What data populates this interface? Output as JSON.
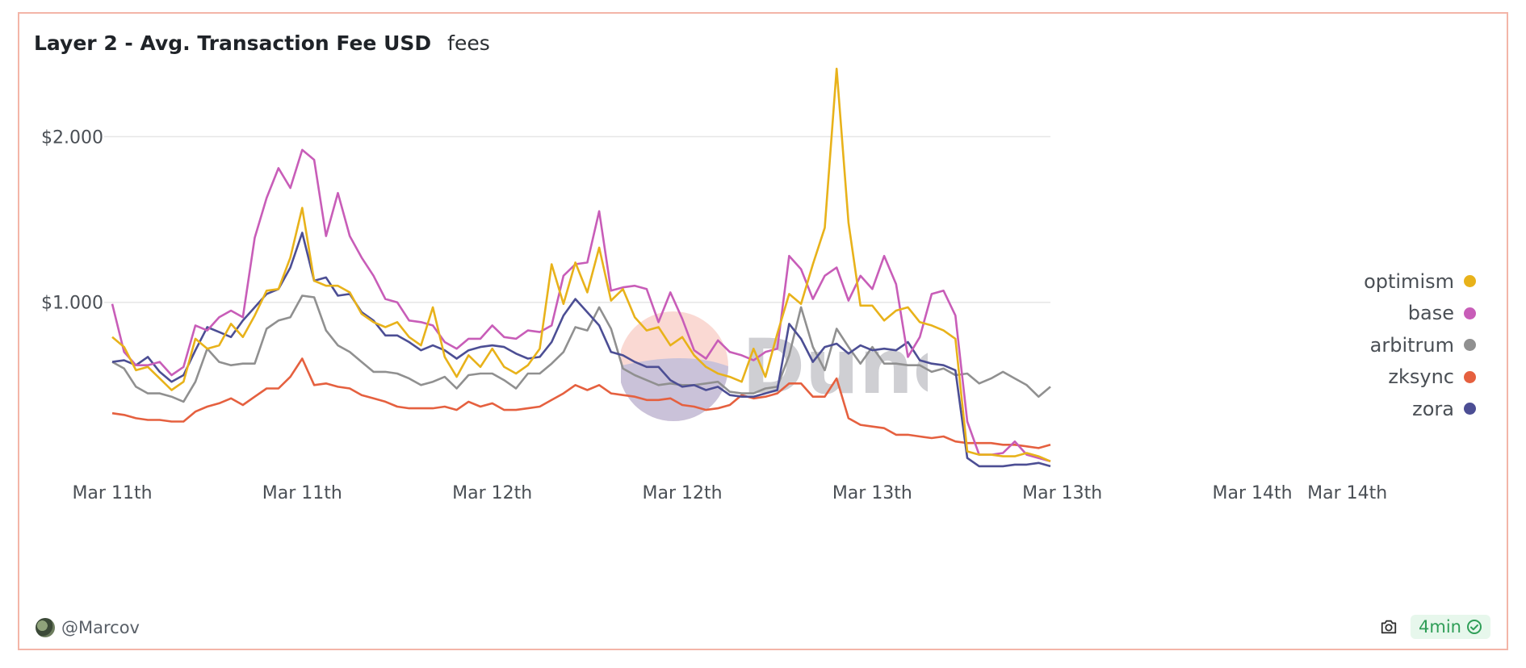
{
  "header": {
    "title": "Layer 2 - Avg. Transaction Fee USD",
    "subtitle": "fees"
  },
  "footer": {
    "author": "@Marcov",
    "refresh": "4min"
  },
  "watermark": {
    "text": "Dune"
  },
  "colors": {
    "optimism": "#e8b21a",
    "base": "#c85db8",
    "arbitrum": "#909090",
    "zksync": "#e5603f",
    "zora": "#4c4e94",
    "border": "#f3b5a8"
  },
  "icons": {
    "camera": "camera-icon",
    "check": "check-circle-icon",
    "avatar": "avatar"
  },
  "chart_data": {
    "type": "line",
    "title": "Layer 2 - Avg. Transaction Fee USD",
    "subtitle": "fees",
    "xlabel": "",
    "ylabel": "",
    "ylim": [
      0,
      2.45
    ],
    "y_ticks": [
      1.0,
      2.0
    ],
    "y_tick_labels": [
      "$1.000",
      "$2.000"
    ],
    "x_tick_labels": [
      "Mar 11th",
      "Mar 11th",
      "Mar 12th",
      "Mar 12th",
      "Mar 13th",
      "Mar 13th",
      "Mar 14th",
      "Mar 14th"
    ],
    "x_tick_index": [
      0,
      16,
      32,
      48,
      64,
      80,
      96,
      104
    ],
    "grid": "horizontal",
    "legend_position": "right",
    "series": [
      {
        "name": "optimism",
        "color": "#e8b21a",
        "values": [
          0.79,
          0.73,
          0.59,
          0.61,
          0.54,
          0.47,
          0.52,
          0.78,
          0.72,
          0.74,
          0.87,
          0.79,
          0.92,
          1.07,
          1.08,
          1.27,
          1.57,
          1.13,
          1.1,
          1.1,
          1.06,
          0.93,
          0.88,
          0.85,
          0.88,
          0.79,
          0.74,
          0.97,
          0.67,
          0.55,
          0.68,
          0.61,
          0.72,
          0.61,
          0.57,
          0.62,
          0.72,
          1.23,
          0.99,
          1.24,
          1.06,
          1.33,
          1.01,
          1.08,
          0.91,
          0.83,
          0.85,
          0.74,
          0.79,
          0.68,
          0.61,
          0.57,
          0.55,
          0.52,
          0.72,
          0.55,
          0.81,
          1.05,
          0.99,
          1.23,
          1.45,
          2.41,
          1.48,
          0.98,
          0.98,
          0.89,
          0.95,
          0.97,
          0.88,
          0.86,
          0.83,
          0.78,
          0.1,
          0.08,
          0.08,
          0.07,
          0.07,
          0.09,
          0.07,
          0.04
        ]
      },
      {
        "name": "base",
        "color": "#c85db8",
        "values": [
          0.99,
          0.7,
          0.62,
          0.62,
          0.64,
          0.56,
          0.61,
          0.86,
          0.83,
          0.91,
          0.95,
          0.91,
          1.39,
          1.63,
          1.81,
          1.69,
          1.92,
          1.86,
          1.4,
          1.66,
          1.4,
          1.27,
          1.16,
          1.02,
          1.0,
          0.89,
          0.88,
          0.86,
          0.76,
          0.72,
          0.78,
          0.78,
          0.86,
          0.79,
          0.78,
          0.83,
          0.82,
          0.86,
          1.16,
          1.23,
          1.24,
          1.55,
          1.07,
          1.09,
          1.1,
          1.08,
          0.88,
          1.06,
          0.9,
          0.71,
          0.66,
          0.77,
          0.7,
          0.68,
          0.65,
          0.7,
          0.72,
          1.28,
          1.2,
          1.02,
          1.16,
          1.21,
          1.01,
          1.16,
          1.08,
          1.28,
          1.11,
          0.67,
          0.79,
          1.05,
          1.07,
          0.92,
          0.28,
          0.08,
          0.08,
          0.09,
          0.16,
          0.08,
          0.06,
          0.04
        ]
      },
      {
        "name": "arbitrum",
        "color": "#909090",
        "values": [
          0.64,
          0.6,
          0.49,
          0.45,
          0.45,
          0.43,
          0.4,
          0.52,
          0.72,
          0.64,
          0.62,
          0.63,
          0.63,
          0.84,
          0.89,
          0.91,
          1.04,
          1.03,
          0.83,
          0.74,
          0.7,
          0.64,
          0.58,
          0.58,
          0.57,
          0.54,
          0.5,
          0.52,
          0.55,
          0.48,
          0.56,
          0.57,
          0.57,
          0.53,
          0.48,
          0.57,
          0.57,
          0.63,
          0.7,
          0.85,
          0.83,
          0.97,
          0.84,
          0.6,
          0.56,
          0.53,
          0.5,
          0.51,
          0.5,
          0.5,
          0.51,
          0.52,
          0.46,
          0.45,
          0.45,
          0.48,
          0.49,
          0.68,
          0.97,
          0.73,
          0.59,
          0.84,
          0.73,
          0.63,
          0.73,
          0.63,
          0.63,
          0.62,
          0.62,
          0.58,
          0.6,
          0.56,
          0.57,
          0.51,
          0.54,
          0.58,
          0.54,
          0.5,
          0.43,
          0.49
        ]
      },
      {
        "name": "zksync",
        "color": "#e5603f",
        "values": [
          0.33,
          0.32,
          0.3,
          0.29,
          0.29,
          0.28,
          0.28,
          0.34,
          0.37,
          0.39,
          0.42,
          0.38,
          0.43,
          0.48,
          0.48,
          0.55,
          0.66,
          0.5,
          0.51,
          0.49,
          0.48,
          0.44,
          0.42,
          0.4,
          0.37,
          0.36,
          0.36,
          0.36,
          0.37,
          0.35,
          0.4,
          0.37,
          0.39,
          0.35,
          0.35,
          0.36,
          0.37,
          0.41,
          0.45,
          0.5,
          0.47,
          0.5,
          0.45,
          0.44,
          0.43,
          0.41,
          0.41,
          0.42,
          0.38,
          0.37,
          0.35,
          0.36,
          0.38,
          0.44,
          0.42,
          0.43,
          0.45,
          0.51,
          0.51,
          0.43,
          0.43,
          0.54,
          0.3,
          0.26,
          0.25,
          0.24,
          0.2,
          0.2,
          0.19,
          0.18,
          0.19,
          0.16,
          0.15,
          0.15,
          0.15,
          0.14,
          0.14,
          0.13,
          0.12,
          0.14
        ]
      },
      {
        "name": "zora",
        "color": "#4c4e94",
        "values": [
          0.64,
          0.65,
          0.62,
          0.67,
          0.58,
          0.52,
          0.56,
          0.71,
          0.85,
          0.82,
          0.79,
          0.89,
          0.97,
          1.05,
          1.08,
          1.21,
          1.42,
          1.13,
          1.15,
          1.04,
          1.05,
          0.94,
          0.89,
          0.8,
          0.8,
          0.76,
          0.71,
          0.74,
          0.71,
          0.66,
          0.71,
          0.73,
          0.74,
          0.73,
          0.69,
          0.66,
          0.67,
          0.76,
          0.92,
          1.02,
          0.94,
          0.86,
          0.7,
          0.68,
          0.64,
          0.61,
          0.61,
          0.53,
          0.49,
          0.5,
          0.47,
          0.49,
          0.44,
          0.43,
          0.43,
          0.45,
          0.47,
          0.87,
          0.78,
          0.64,
          0.73,
          0.75,
          0.69,
          0.74,
          0.71,
          0.72,
          0.71,
          0.76,
          0.65,
          0.63,
          0.62,
          0.59,
          0.06,
          0.01,
          0.01,
          0.01,
          0.02,
          0.02,
          0.03,
          0.01
        ]
      }
    ]
  }
}
